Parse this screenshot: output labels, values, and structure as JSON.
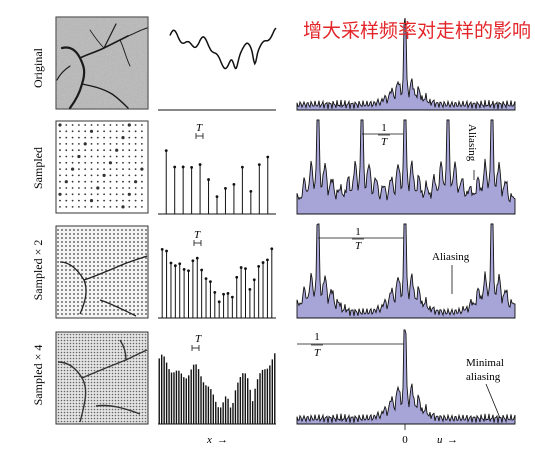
{
  "overlay_title": "增大采样频率对走样的影响",
  "rows": [
    {
      "label": "Original"
    },
    {
      "label": "Sampled"
    },
    {
      "label": "Sampled × 2"
    },
    {
      "label": "Sampled × 4"
    }
  ],
  "period_symbol": "T",
  "fraction_numerator": "1",
  "annotations": {
    "aliasing_row2": "Aliasing",
    "aliasing_row3": "Aliasing",
    "minimal_aliasing_line1": "Minimal",
    "minimal_aliasing_line2": "aliasing"
  },
  "axes": {
    "spatial_axis_label": "x",
    "frequency_axis_label": "u",
    "frequency_origin_label": "0",
    "arrow_glyph": "→"
  },
  "colors": {
    "spectrum_fill": "#a7a5d8",
    "overlay_text": "#e3262a",
    "line": "#111111"
  }
}
